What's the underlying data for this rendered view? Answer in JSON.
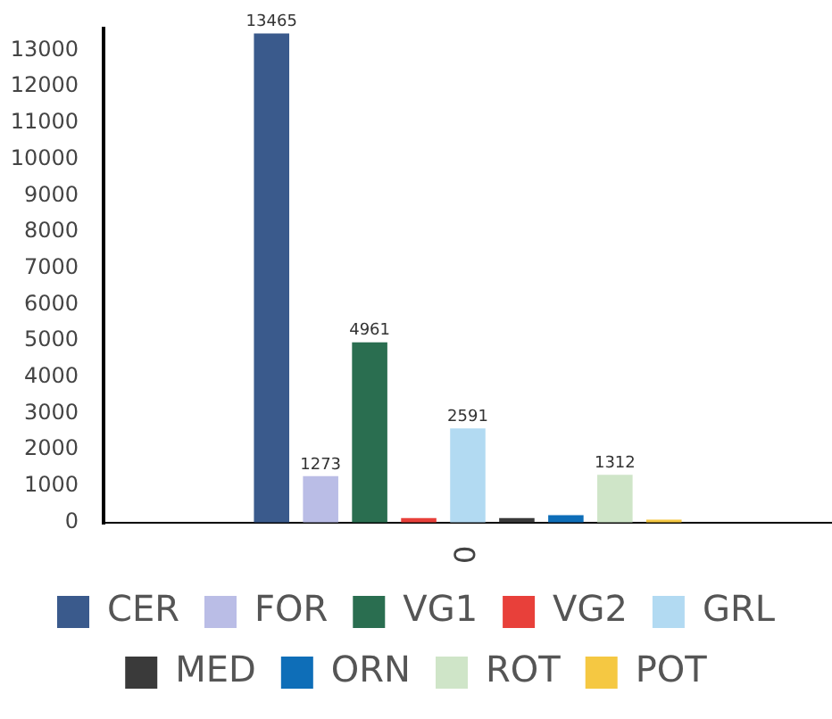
{
  "chart_data": {
    "type": "bar",
    "categories": [
      "0"
    ],
    "legend": "bottom",
    "ylim": [
      0,
      13600
    ],
    "yticks": [
      0,
      1000,
      2000,
      3000,
      4000,
      5000,
      6000,
      7000,
      8000,
      9000,
      10000,
      11000,
      12000,
      13000
    ],
    "series": [
      {
        "name": "CER",
        "color": "#3a5a8c",
        "values": [
          13465
        ],
        "value_labels": [
          "13465"
        ]
      },
      {
        "name": "FOR",
        "color": "#babde6",
        "values": [
          1273
        ],
        "value_labels": [
          "1273"
        ]
      },
      {
        "name": "VG1",
        "color": "#2a6e50",
        "values": [
          4961
        ],
        "value_labels": [
          "4961"
        ]
      },
      {
        "name": "VG2",
        "color": "#e8403a",
        "values": [
          120
        ]
      },
      {
        "name": "GRL",
        "color": "#b2daf2",
        "values": [
          2591
        ],
        "value_labels": [
          "2591"
        ]
      },
      {
        "name": "MED",
        "color": "#3a3a3a",
        "values": [
          120
        ]
      },
      {
        "name": "ORN",
        "color": "#0e6eb8",
        "values": [
          200
        ]
      },
      {
        "name": "ROT",
        "color": "#cfe5c8",
        "values": [
          1312
        ],
        "value_labels": [
          "1312"
        ]
      },
      {
        "name": "POT",
        "color": "#f5c842",
        "values": [
          80
        ]
      }
    ]
  }
}
